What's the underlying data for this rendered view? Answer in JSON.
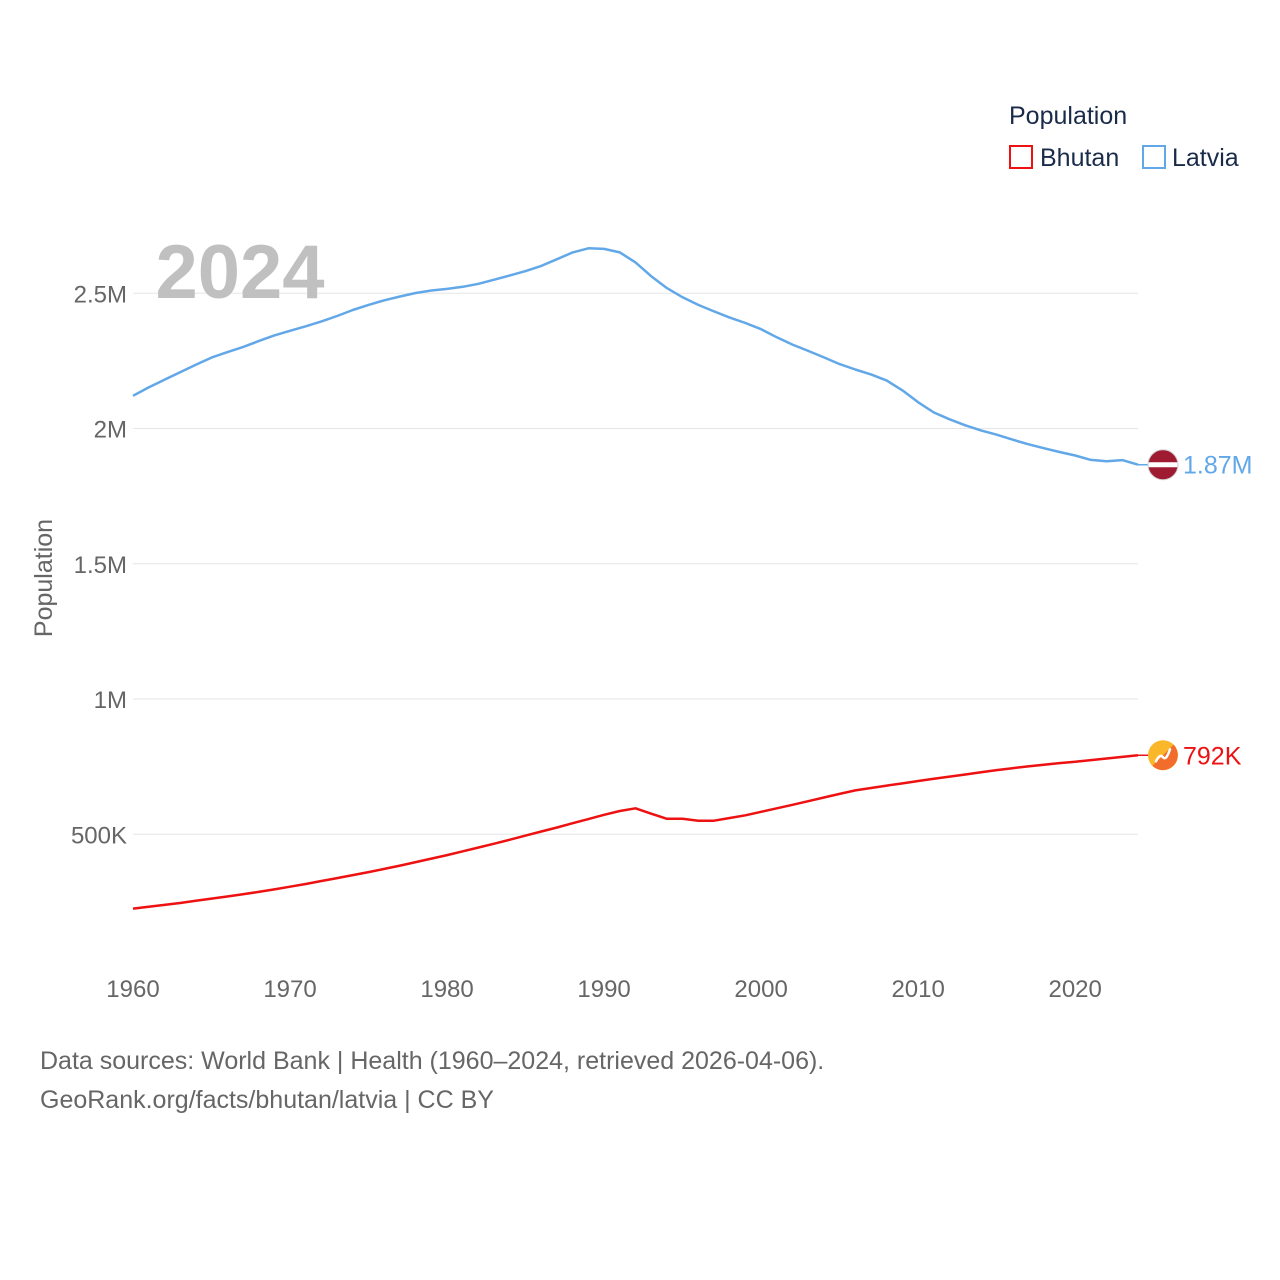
{
  "chart_data": {
    "type": "line",
    "year_label": "2024",
    "ylabel": "Population",
    "xlim": [
      1960,
      2024
    ],
    "ylim": [
      0,
      2900000
    ],
    "x_ticks": [
      {
        "value": 1960,
        "label": "1960"
      },
      {
        "value": 1970,
        "label": "1970"
      },
      {
        "value": 1980,
        "label": "1980"
      },
      {
        "value": 1990,
        "label": "1990"
      },
      {
        "value": 2000,
        "label": "2000"
      },
      {
        "value": 2010,
        "label": "2010"
      },
      {
        "value": 2020,
        "label": "2020"
      }
    ],
    "y_ticks": [
      {
        "value": 500000,
        "label": "500K"
      },
      {
        "value": 1000000,
        "label": "1M"
      },
      {
        "value": 1500000,
        "label": "1.5M"
      },
      {
        "value": 2000000,
        "label": "2M"
      },
      {
        "value": 2500000,
        "label": "2.5M"
      }
    ],
    "legend": {
      "title": "Population",
      "position": "top-right"
    },
    "x": [
      1960,
      1961,
      1962,
      1963,
      1964,
      1965,
      1966,
      1967,
      1968,
      1969,
      1970,
      1971,
      1972,
      1973,
      1974,
      1975,
      1976,
      1977,
      1978,
      1979,
      1980,
      1981,
      1982,
      1983,
      1984,
      1985,
      1986,
      1987,
      1988,
      1989,
      1990,
      1991,
      1992,
      1993,
      1994,
      1995,
      1996,
      1997,
      1998,
      1999,
      2000,
      2001,
      2002,
      2003,
      2004,
      2005,
      2006,
      2007,
      2008,
      2009,
      2010,
      2011,
      2012,
      2013,
      2014,
      2015,
      2016,
      2017,
      2018,
      2019,
      2020,
      2021,
      2022,
      2023,
      2024
    ],
    "series": [
      {
        "name": "Bhutan",
        "color": "#ee1111",
        "end_label": "792K",
        "flag": "bhutan-flag-icon",
        "values": [
          225000,
          232000,
          239000,
          246000,
          254000,
          262000,
          270000,
          278000,
          287000,
          296000,
          306000,
          316000,
          327000,
          338000,
          349000,
          360000,
          372000,
          384000,
          397000,
          410000,
          423000,
          437000,
          451000,
          465000,
          480000,
          495000,
          510000,
          525000,
          541000,
          556000,
          572000,
          586000,
          596000,
          576000,
          557000,
          557000,
          550000,
          550000,
          560000,
          570000,
          583000,
          596000,
          609000,
          622000,
          636000,
          649000,
          662000,
          671000,
          680000,
          688000,
          697000,
          705000,
          713000,
          721000,
          729000,
          737000,
          744000,
          751000,
          757000,
          763000,
          768000,
          774000,
          780000,
          786000,
          792000
        ]
      },
      {
        "name": "Latvia",
        "color": "#62a8e8",
        "end_label": "1.87M",
        "flag": "latvia-flag-icon",
        "values": [
          2121000,
          2152000,
          2180000,
          2208000,
          2236000,
          2262000,
          2282000,
          2301000,
          2323000,
          2344000,
          2361000,
          2378000,
          2396000,
          2416000,
          2438000,
          2457000,
          2474000,
          2488000,
          2501000,
          2510000,
          2516000,
          2524000,
          2535000,
          2550000,
          2566000,
          2582000,
          2601000,
          2626000,
          2651000,
          2666000,
          2664000,
          2651000,
          2614000,
          2563000,
          2519000,
          2485000,
          2457000,
          2433000,
          2410000,
          2390000,
          2367000,
          2337000,
          2310000,
          2287000,
          2263000,
          2238000,
          2218000,
          2200000,
          2177000,
          2141000,
          2097000,
          2059000,
          2034000,
          2012000,
          1993000,
          1977000,
          1959000,
          1942000,
          1927000,
          1913000,
          1900000,
          1884000,
          1879000,
          1883000,
          1866000
        ]
      }
    ]
  },
  "footer": {
    "line1": "Data sources: World Bank | Health (1960–2024, retrieved 2026-04-06).",
    "line2": "GeoRank.org/facts/bhutan/latvia | CC BY"
  }
}
